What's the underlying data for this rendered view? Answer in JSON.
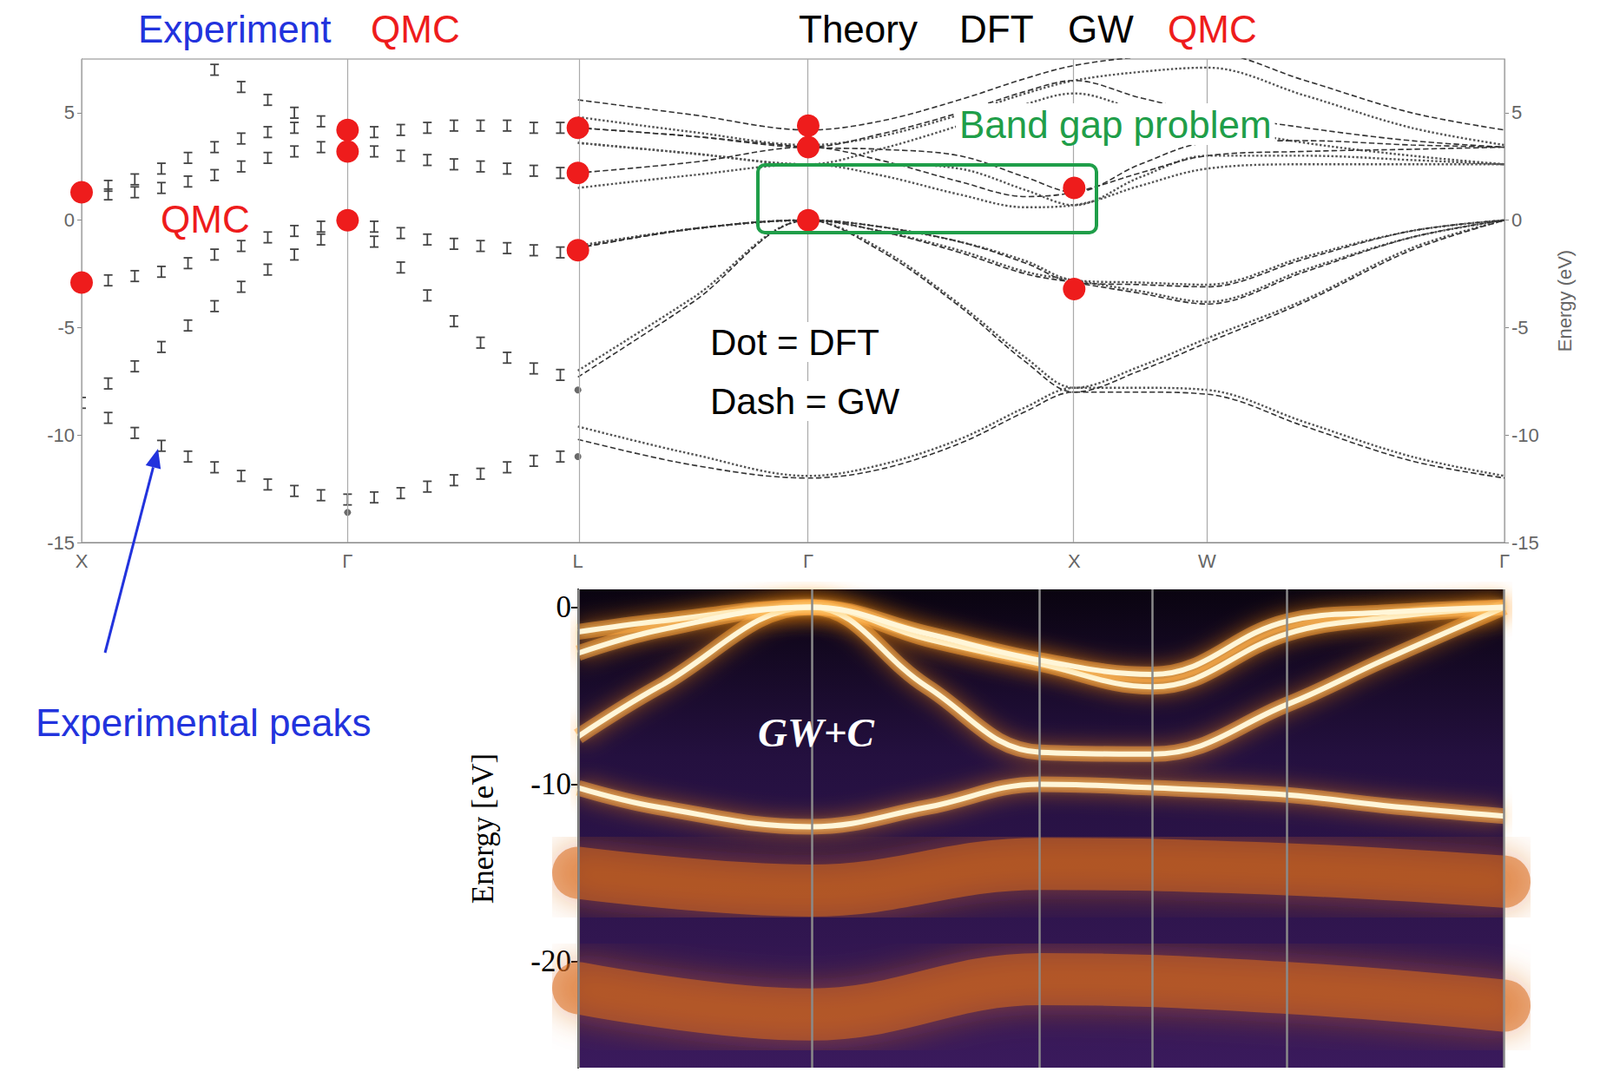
{
  "chart_data": [
    {
      "type": "band_structure",
      "y_label": "Energy (eV)",
      "xlim": [
        0,
        5.35
      ],
      "xticks": [
        {
          "value": 0,
          "label": "X"
        },
        {
          "value": 1,
          "label": "Γ"
        },
        {
          "value": 1.866,
          "label": "L"
        },
        {
          "value": 2.732,
          "label": "Γ"
        },
        {
          "value": 3.732,
          "label": "X"
        },
        {
          "value": 4.232,
          "label": "W"
        },
        {
          "value": 5.35,
          "label": "Γ"
        }
      ],
      "ylim": [
        -15,
        7.5
      ],
      "yticks": [
        -15,
        -10,
        -5,
        0,
        5
      ],
      "grid": true,
      "series": [
        {
          "name": "Experiment",
          "type": "errorbar",
          "color": "#444444",
          "yerr": 0.25,
          "points": [
            [
              0,
              -8.5
            ],
            [
              0.1,
              -9.2
            ],
            [
              0.2,
              -9.9
            ],
            [
              0.3,
              -10.5
            ],
            [
              0.4,
              -11.0
            ],
            [
              0.5,
              -11.5
            ],
            [
              0.6,
              -11.9
            ],
            [
              0.7,
              -12.3
            ],
            [
              0.8,
              -12.6
            ],
            [
              0.9,
              -12.8
            ],
            [
              1,
              -13.0
            ],
            [
              0.1,
              -7.6
            ],
            [
              0.2,
              -6.8
            ],
            [
              0.3,
              -5.9
            ],
            [
              0.4,
              -4.9
            ],
            [
              0.5,
              -4.0
            ],
            [
              0.6,
              -3.1
            ],
            [
              0.7,
              -2.3
            ],
            [
              0.8,
              -1.6
            ],
            [
              0.9,
              -0.9
            ],
            [
              0,
              -2.9
            ],
            [
              0.1,
              -2.8
            ],
            [
              0.2,
              -2.6
            ],
            [
              0.3,
              -2.4
            ],
            [
              0.4,
              -2.0
            ],
            [
              0.5,
              -1.6
            ],
            [
              0.6,
              -1.2
            ],
            [
              0.7,
              -0.8
            ],
            [
              0.8,
              -0.5
            ],
            [
              0.9,
              -0.3
            ],
            [
              1,
              -0.1
            ],
            [
              0.1,
              1.2
            ],
            [
              0.2,
              1.3
            ],
            [
              0.3,
              1.5
            ],
            [
              0.4,
              1.8
            ],
            [
              0.5,
              2.1
            ],
            [
              0.6,
              2.5
            ],
            [
              0.7,
              2.9
            ],
            [
              0.8,
              3.2
            ],
            [
              0.9,
              3.4
            ],
            [
              0.1,
              1.6
            ],
            [
              0.2,
              1.9
            ],
            [
              0.3,
              2.4
            ],
            [
              0.4,
              2.9
            ],
            [
              0.5,
              3.4
            ],
            [
              0.6,
              3.8
            ],
            [
              0.7,
              4.1
            ],
            [
              0.8,
              4.3
            ],
            [
              0.5,
              7.0
            ],
            [
              0.6,
              6.2
            ],
            [
              0.7,
              5.6
            ],
            [
              0.8,
              5.0
            ],
            [
              0.9,
              4.6
            ],
            [
              1.1,
              -0.3
            ],
            [
              1.2,
              -0.6
            ],
            [
              1.3,
              -0.9
            ],
            [
              1.4,
              -1.1
            ],
            [
              1.5,
              -1.2
            ],
            [
              1.6,
              -1.3
            ],
            [
              1.7,
              -1.4
            ],
            [
              1.8,
              -1.5
            ],
            [
              1.1,
              -1.0
            ],
            [
              1.2,
              -2.2
            ],
            [
              1.3,
              -3.5
            ],
            [
              1.4,
              -4.7
            ],
            [
              1.5,
              -5.7
            ],
            [
              1.6,
              -6.4
            ],
            [
              1.7,
              -6.9
            ],
            [
              1.8,
              -7.2
            ],
            [
              1.1,
              -12.9
            ],
            [
              1.2,
              -12.7
            ],
            [
              1.3,
              -12.4
            ],
            [
              1.4,
              -12.1
            ],
            [
              1.5,
              -11.8
            ],
            [
              1.6,
              -11.5
            ],
            [
              1.7,
              -11.2
            ],
            [
              1.8,
              -11.0
            ],
            [
              1.1,
              3.2
            ],
            [
              1.2,
              3.0
            ],
            [
              1.3,
              2.8
            ],
            [
              1.4,
              2.6
            ],
            [
              1.5,
              2.5
            ],
            [
              1.6,
              2.4
            ],
            [
              1.7,
              2.3
            ],
            [
              1.8,
              2.2
            ],
            [
              1.1,
              4.1
            ],
            [
              1.2,
              4.2
            ],
            [
              1.3,
              4.3
            ],
            [
              1.4,
              4.4
            ],
            [
              1.5,
              4.4
            ],
            [
              1.6,
              4.4
            ],
            [
              1.7,
              4.3
            ],
            [
              1.8,
              4.3
            ]
          ],
          "dots": [
            [
              1,
              -13.6
            ],
            [
              1.866,
              -7.9
            ],
            [
              1.866,
              -11.0
            ]
          ]
        },
        {
          "name": "DFT",
          "type": "line",
          "line_style": "dotted",
          "color": "#555555",
          "x": [
            1.866,
            2.3,
            2.732,
            3.0,
            3.3,
            3.55,
            3.732,
            3.98,
            4.232,
            4.6,
            5.0,
            5.35
          ],
          "bands": [
            [
              -9.6,
              -10.9,
              -11.9,
              -11.4,
              -10.2,
              -8.7,
              -7.8,
              -7.8,
              -7.9,
              -9.4,
              -11.0,
              -11.9
            ],
            [
              -7.0,
              -3.6,
              0,
              -1.3,
              -3.9,
              -6.4,
              -7.8,
              -6.8,
              -5.5,
              -3.7,
              -1.3,
              0
            ],
            [
              -1.2,
              -0.4,
              0,
              -0.5,
              -1.4,
              -2.4,
              -2.8,
              -3.3,
              -3.8,
              -2.3,
              -0.8,
              0
            ],
            [
              -1.2,
              -0.4,
              0,
              -0.3,
              -1.0,
              -1.9,
              -2.8,
              -2.9,
              -3.0,
              -1.7,
              -0.5,
              0
            ],
            [
              1.5,
              2.1,
              2.6,
              2.1,
              1.2,
              0.6,
              0.7,
              1.6,
              2.4,
              2.6,
              2.6,
              2.6
            ],
            [
              3.6,
              3.1,
              2.6,
              2.6,
              2.4,
              1.4,
              0.7,
              2.0,
              3.0,
              3.0,
              2.8,
              2.6
            ],
            [
              3.6,
              3.1,
              2.6,
              3.3,
              4.4,
              5.4,
              5.9,
              5.1,
              4.4,
              3.6,
              3.0,
              2.6
            ],
            [
              4.8,
              4.1,
              3.5,
              3.9,
              4.9,
              5.9,
              6.5,
              6.9,
              7.1,
              5.8,
              4.3,
              3.5
            ]
          ]
        },
        {
          "name": "GW",
          "type": "line",
          "line_style": "dashed",
          "color": "#333333",
          "x": [
            1.866,
            2.3,
            2.732,
            3.0,
            3.3,
            3.55,
            3.732,
            3.98,
            4.232,
            4.6,
            5.0,
            5.35
          ],
          "bands": [
            [
              -10.2,
              -11.4,
              -12.0,
              -11.6,
              -10.4,
              -8.9,
              -8.0,
              -8.0,
              -8.1,
              -9.6,
              -11.2,
              -12.0
            ],
            [
              -7.3,
              -3.8,
              0,
              -1.4,
              -4.0,
              -6.6,
              -8.0,
              -7.0,
              -5.7,
              -3.8,
              -1.4,
              0
            ],
            [
              -1.3,
              -0.4,
              0,
              -0.5,
              -1.5,
              -2.5,
              -2.9,
              -3.4,
              -3.9,
              -2.4,
              -0.8,
              0
            ],
            [
              -1.3,
              -0.4,
              0,
              -0.3,
              -1.0,
              -2.0,
              -2.9,
              -3.0,
              -3.1,
              -1.8,
              -0.5,
              0
            ],
            [
              2.2,
              2.7,
              3.4,
              2.8,
              1.8,
              1.1,
              1.3,
              2.2,
              3.0,
              3.2,
              3.3,
              3.4
            ],
            [
              4.3,
              3.9,
              3.4,
              3.3,
              3.0,
              2.0,
              1.3,
              2.6,
              3.6,
              3.7,
              3.5,
              3.4
            ],
            [
              4.3,
              3.9,
              3.4,
              4.0,
              5.0,
              6.0,
              6.5,
              5.7,
              5.0,
              4.3,
              3.7,
              3.4
            ],
            [
              5.6,
              4.9,
              4.2,
              4.6,
              5.6,
              6.6,
              7.2,
              7.6,
              7.8,
              6.5,
              5.0,
              4.2
            ]
          ]
        },
        {
          "name": "QMC",
          "type": "scatter",
          "marker": "circle",
          "color": "#ee1c1c",
          "points": [
            [
              0,
              1.3
            ],
            [
              0,
              -2.9
            ],
            [
              1,
              4.2
            ],
            [
              1,
              3.2
            ],
            [
              1,
              0
            ],
            [
              1.866,
              4.3
            ],
            [
              1.866,
              2.2
            ],
            [
              1.866,
              -1.4
            ],
            [
              2.732,
              4.4
            ],
            [
              2.732,
              3.4
            ],
            [
              2.732,
              0
            ],
            [
              3.732,
              1.5
            ],
            [
              3.732,
              -3.2
            ]
          ]
        }
      ],
      "annotations": [
        {
          "text": "Experiment",
          "color": "#2233dd"
        },
        {
          "text": "QMC",
          "color": "#ee1c1c"
        },
        {
          "text": "Theory",
          "color": "#000000"
        },
        {
          "text": "DFT",
          "color": "#000000"
        },
        {
          "text": "GW",
          "color": "#000000"
        },
        {
          "text": "QMC",
          "color": "#ee1c1c"
        },
        {
          "text": "Band gap problem",
          "color": "#1f9e49"
        },
        {
          "text": "QMC",
          "color": "#ee1c1c"
        },
        {
          "text": "Dot = DFT",
          "color": "#000000"
        },
        {
          "text": "Dash = GW",
          "color": "#000000"
        },
        {
          "text": "Experimental peaks",
          "color": "#2233dd"
        }
      ]
    },
    {
      "type": "spectral_function",
      "title": "GW+C",
      "y_label": "Energy [eV]",
      "xlim": [
        0,
        3.452
      ],
      "xticks": [
        0,
        0.866,
        1.722,
        2.14,
        2.642,
        3.452
      ],
      "ylim": [
        -26,
        1
      ],
      "yticks": [
        0,
        -10,
        -20
      ],
      "tick_labels": "y",
      "grid": true,
      "quasiparticle_bands": {
        "color": "#fff6d8",
        "x": [
          0,
          0.3,
          0.866,
          1.3,
          1.722,
          2.14,
          2.642,
          3.0,
          3.452
        ],
        "bands": [
          [
            -10.2,
            -11.3,
            -12.4,
            -11.3,
            -10.0,
            -10.2,
            -10.6,
            -11.2,
            -11.8
          ],
          [
            -7.3,
            -4.5,
            0,
            -4.5,
            -8.2,
            -8.3,
            -5.5,
            -3.0,
            0
          ],
          [
            -1.4,
            -0.8,
            0,
            -1.8,
            -3.2,
            -4.5,
            -1.5,
            -0.6,
            0
          ],
          [
            -2.6,
            -1.3,
            0,
            -1.5,
            -3.0,
            -3.8,
            -0.8,
            -0.3,
            0
          ]
        ]
      },
      "satellites": {
        "color": "#d9691f",
        "x": [
          0,
          0.866,
          1.722,
          2.642,
          3.452
        ],
        "bands": [
          [
            -15.0,
            -16.0,
            -14.5,
            -14.8,
            -15.5
          ],
          [
            -21.5,
            -23.0,
            -21.0,
            -21.5,
            -22.5
          ]
        ]
      }
    }
  ]
}
